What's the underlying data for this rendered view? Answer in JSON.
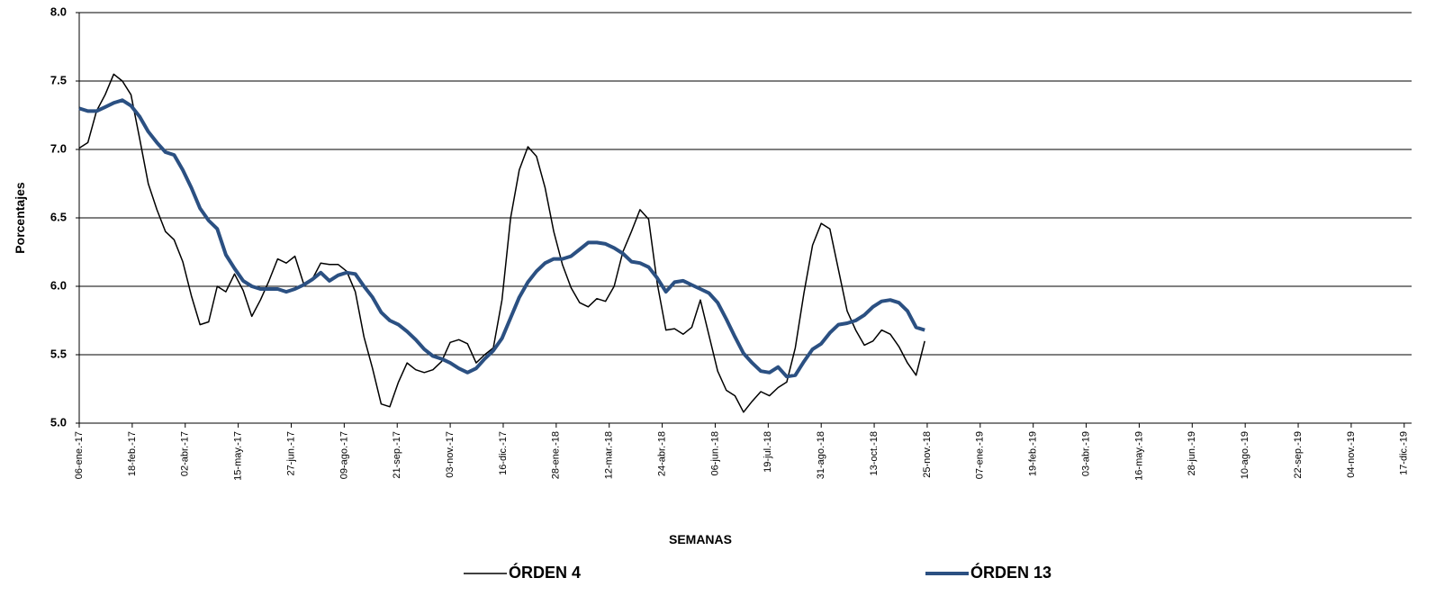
{
  "chart_data": {
    "type": "line",
    "y_label": "Porcentajes",
    "x_label": "SEMANAS",
    "x": [
      "2017-01-06",
      "2017-01-13",
      "2017-01-20",
      "2017-01-27",
      "2017-02-03",
      "2017-02-10",
      "2017-02-17",
      "2017-02-24",
      "2017-03-03",
      "2017-03-10",
      "2017-03-17",
      "2017-03-24",
      "2017-03-31",
      "2017-04-07",
      "2017-04-14",
      "2017-04-21",
      "2017-04-28",
      "2017-05-05",
      "2017-05-12",
      "2017-05-19",
      "2017-05-26",
      "2017-06-02",
      "2017-06-09",
      "2017-06-16",
      "2017-06-23",
      "2017-06-30",
      "2017-07-07",
      "2017-07-14",
      "2017-07-21",
      "2017-07-28",
      "2017-08-04",
      "2017-08-11",
      "2017-08-18",
      "2017-08-25",
      "2017-09-01",
      "2017-09-08",
      "2017-09-15",
      "2017-09-22",
      "2017-09-29",
      "2017-10-06",
      "2017-10-13",
      "2017-10-20",
      "2017-10-27",
      "2017-11-03",
      "2017-11-10",
      "2017-11-17",
      "2017-11-24",
      "2017-12-01",
      "2017-12-08",
      "2017-12-15",
      "2017-12-22",
      "2017-12-29",
      "2018-01-05",
      "2018-01-12",
      "2018-01-19",
      "2018-01-26",
      "2018-02-02",
      "2018-02-09",
      "2018-02-16",
      "2018-02-23",
      "2018-03-02",
      "2018-03-09",
      "2018-03-16",
      "2018-03-23",
      "2018-03-30",
      "2018-04-06",
      "2018-04-13",
      "2018-04-20",
      "2018-04-27",
      "2018-05-04",
      "2018-05-11",
      "2018-05-18",
      "2018-05-25",
      "2018-06-01",
      "2018-06-08",
      "2018-06-15",
      "2018-06-22",
      "2018-06-29",
      "2018-07-06",
      "2018-07-13",
      "2018-07-20",
      "2018-07-27",
      "2018-08-03",
      "2018-08-10",
      "2018-08-17",
      "2018-08-24",
      "2018-08-31",
      "2018-09-07",
      "2018-09-14",
      "2018-09-21",
      "2018-09-28",
      "2018-10-05",
      "2018-10-12",
      "2018-10-19",
      "2018-10-26",
      "2018-11-02",
      "2018-11-09",
      "2018-11-16",
      "2018-11-23"
    ],
    "series": [
      {
        "name": "ÓRDEN 4",
        "color": "#000000",
        "width": 1.5,
        "values": [
          7.01,
          7.05,
          7.28,
          7.4,
          7.55,
          7.5,
          7.4,
          7.08,
          6.75,
          6.56,
          6.4,
          6.34,
          6.18,
          5.93,
          5.72,
          5.74,
          6.0,
          5.96,
          6.09,
          5.97,
          5.78,
          5.9,
          6.04,
          6.2,
          6.17,
          6.22,
          6.02,
          6.05,
          6.17,
          6.16,
          6.16,
          6.11,
          5.96,
          5.63,
          5.4,
          5.14,
          5.12,
          5.3,
          5.44,
          5.39,
          5.37,
          5.39,
          5.45,
          5.59,
          5.61,
          5.58,
          5.44,
          5.5,
          5.55,
          5.9,
          6.5,
          6.85,
          7.02,
          6.95,
          6.72,
          6.4,
          6.16,
          5.99,
          5.88,
          5.85,
          5.91,
          5.89,
          6.0,
          6.25,
          6.4,
          6.56,
          6.49,
          6.02,
          5.68,
          5.69,
          5.65,
          5.7,
          5.9,
          5.64,
          5.38,
          5.24,
          5.2,
          5.08,
          5.16,
          5.23,
          5.2,
          5.26,
          5.3,
          5.55,
          5.95,
          6.3,
          6.46,
          6.42,
          6.12,
          5.82,
          5.68,
          5.57,
          5.6,
          5.68,
          5.65,
          5.56,
          5.44,
          5.35,
          5.6
        ]
      },
      {
        "name": "ÓRDEN 13",
        "color": "#2b5082",
        "width": 4,
        "values": [
          7.3,
          7.28,
          7.28,
          7.31,
          7.34,
          7.36,
          7.32,
          7.24,
          7.13,
          7.05,
          6.98,
          6.96,
          6.85,
          6.72,
          6.57,
          6.48,
          6.42,
          6.23,
          6.13,
          6.04,
          6.0,
          5.98,
          5.98,
          5.98,
          5.96,
          5.98,
          6.01,
          6.05,
          6.1,
          6.04,
          6.08,
          6.1,
          6.09,
          6.0,
          5.92,
          5.81,
          5.75,
          5.72,
          5.67,
          5.61,
          5.54,
          5.49,
          5.47,
          5.44,
          5.4,
          5.37,
          5.4,
          5.47,
          5.53,
          5.62,
          5.77,
          5.92,
          6.03,
          6.11,
          6.17,
          6.2,
          6.2,
          6.22,
          6.27,
          6.32,
          6.32,
          6.31,
          6.28,
          6.24,
          6.18,
          6.17,
          6.14,
          6.06,
          5.96,
          6.03,
          6.04,
          6.01,
          5.98,
          5.95,
          5.88,
          5.76,
          5.63,
          5.51,
          5.44,
          5.38,
          5.37,
          5.41,
          5.34,
          5.35,
          5.45,
          5.54,
          5.58,
          5.66,
          5.72,
          5.73,
          5.75,
          5.79,
          5.85,
          5.89,
          5.9,
          5.88,
          5.82,
          5.7,
          5.68
        ]
      }
    ],
    "xlim": [
      "2017-01-06",
      "2019-12-23"
    ],
    "xticks": [
      {
        "value": "2017-01-06",
        "label": "06-ene.-17"
      },
      {
        "value": "2017-02-18",
        "label": "18-feb.-17"
      },
      {
        "value": "2017-04-02",
        "label": "02-abr.-17"
      },
      {
        "value": "2017-05-15",
        "label": "15-may.-17"
      },
      {
        "value": "2017-06-27",
        "label": "27-jun.-17"
      },
      {
        "value": "2017-08-09",
        "label": "09-ago.-17"
      },
      {
        "value": "2017-09-21",
        "label": "21-sep.-17"
      },
      {
        "value": "2017-11-03",
        "label": "03-nov.-17"
      },
      {
        "value": "2017-12-16",
        "label": "16-dic.-17"
      },
      {
        "value": "2018-01-28",
        "label": "28-ene.-18"
      },
      {
        "value": "2018-03-12",
        "label": "12-mar.-18"
      },
      {
        "value": "2018-04-24",
        "label": "24-abr.-18"
      },
      {
        "value": "2018-06-06",
        "label": "06-jun.-18"
      },
      {
        "value": "2018-07-19",
        "label": "19-jul.-18"
      },
      {
        "value": "2018-08-31",
        "label": "31-ago.-18"
      },
      {
        "value": "2018-10-13",
        "label": "13-oct.-18"
      },
      {
        "value": "2018-11-25",
        "label": "25-nov.-18"
      },
      {
        "value": "2019-01-07",
        "label": "07-ene.-19"
      },
      {
        "value": "2019-02-19",
        "label": "19-feb.-19"
      },
      {
        "value": "2019-04-03",
        "label": "03-abr.-19"
      },
      {
        "value": "2019-05-16",
        "label": "16-may.-19"
      },
      {
        "value": "2019-06-28",
        "label": "28-jun.-19"
      },
      {
        "value": "2019-08-10",
        "label": "10-ago.-19"
      },
      {
        "value": "2019-09-22",
        "label": "22-sep.-19"
      },
      {
        "value": "2019-11-04",
        "label": "04-nov.-19"
      },
      {
        "value": "2019-12-17",
        "label": "17-dic.-19"
      }
    ],
    "ylim": [
      5,
      8
    ],
    "yticks": [
      {
        "value": 5,
        "label": "5.0"
      },
      {
        "value": 5.5,
        "label": "5.5"
      },
      {
        "value": 6,
        "label": "6.0"
      },
      {
        "value": 6.5,
        "label": "6.5"
      },
      {
        "value": 7,
        "label": "7.0"
      },
      {
        "value": 7.5,
        "label": "7.5"
      },
      {
        "value": 8,
        "label": "8.0"
      }
    ],
    "grid": true,
    "legend": "bottom"
  }
}
